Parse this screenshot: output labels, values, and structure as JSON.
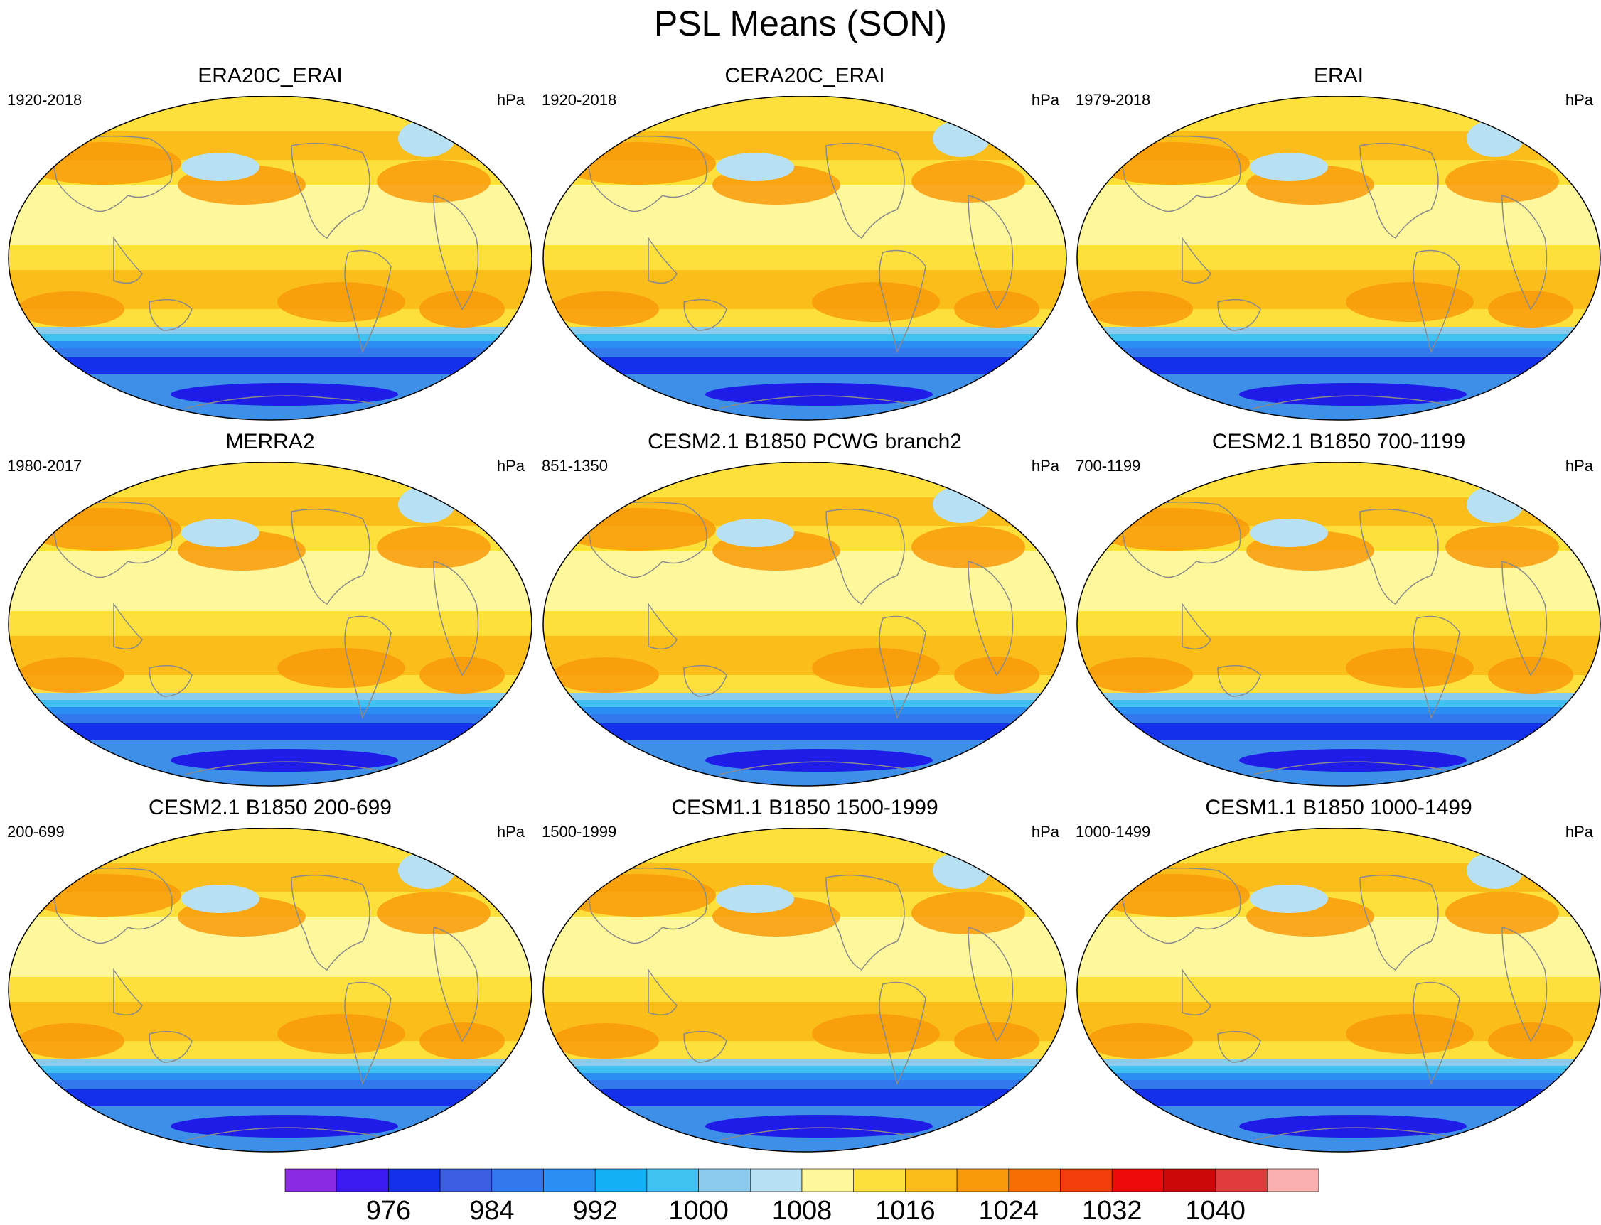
{
  "figure": {
    "title": "PSL Means (SON)",
    "units": "hPa"
  },
  "panels": [
    {
      "title": "ERA20C_ERAI",
      "period": "1920-2018",
      "units": "hPa"
    },
    {
      "title": "CERA20C_ERAI",
      "period": "1920-2018",
      "units": "hPa"
    },
    {
      "title": "ERAI",
      "period": "1979-2018",
      "units": "hPa"
    },
    {
      "title": "MERRA2",
      "period": "1980-2017",
      "units": "hPa"
    },
    {
      "title": "CESM2.1 B1850 PCWG branch2",
      "period": "851-1350",
      "units": "hPa"
    },
    {
      "title": "CESM2.1 B1850 700-1199",
      "period": "700-1199",
      "units": "hPa"
    },
    {
      "title": "CESM2.1 B1850 200-699",
      "period": "200-699",
      "units": "hPa"
    },
    {
      "title": "CESM1.1 B1850 1500-1999",
      "period": "1500-1999",
      "units": "hPa"
    },
    {
      "title": "CESM1.1 B1850 1000-1499",
      "period": "1000-1499",
      "units": "hPa"
    }
  ],
  "colorbar": {
    "labels": [
      "976",
      "984",
      "992",
      "1000",
      "1008",
      "1016",
      "1024",
      "1032",
      "1040"
    ],
    "colors": [
      "#8a2be2",
      "#3a1af0",
      "#1430ea",
      "#3d5ee0",
      "#3478ee",
      "#2a8ef5",
      "#13b0f5",
      "#3fc1f2",
      "#8ccbec",
      "#b7e1f3",
      "#fff79c",
      "#fde03c",
      "#fbbd1a",
      "#f99a0a",
      "#f76e06",
      "#f33e0c",
      "#ef0a0a",
      "#cc0808",
      "#e03c3c",
      "#fbb0b0"
    ]
  },
  "colors": {
    "coastline": "#8a8a8a",
    "map_outline": "#000000",
    "text": "#000000"
  }
}
